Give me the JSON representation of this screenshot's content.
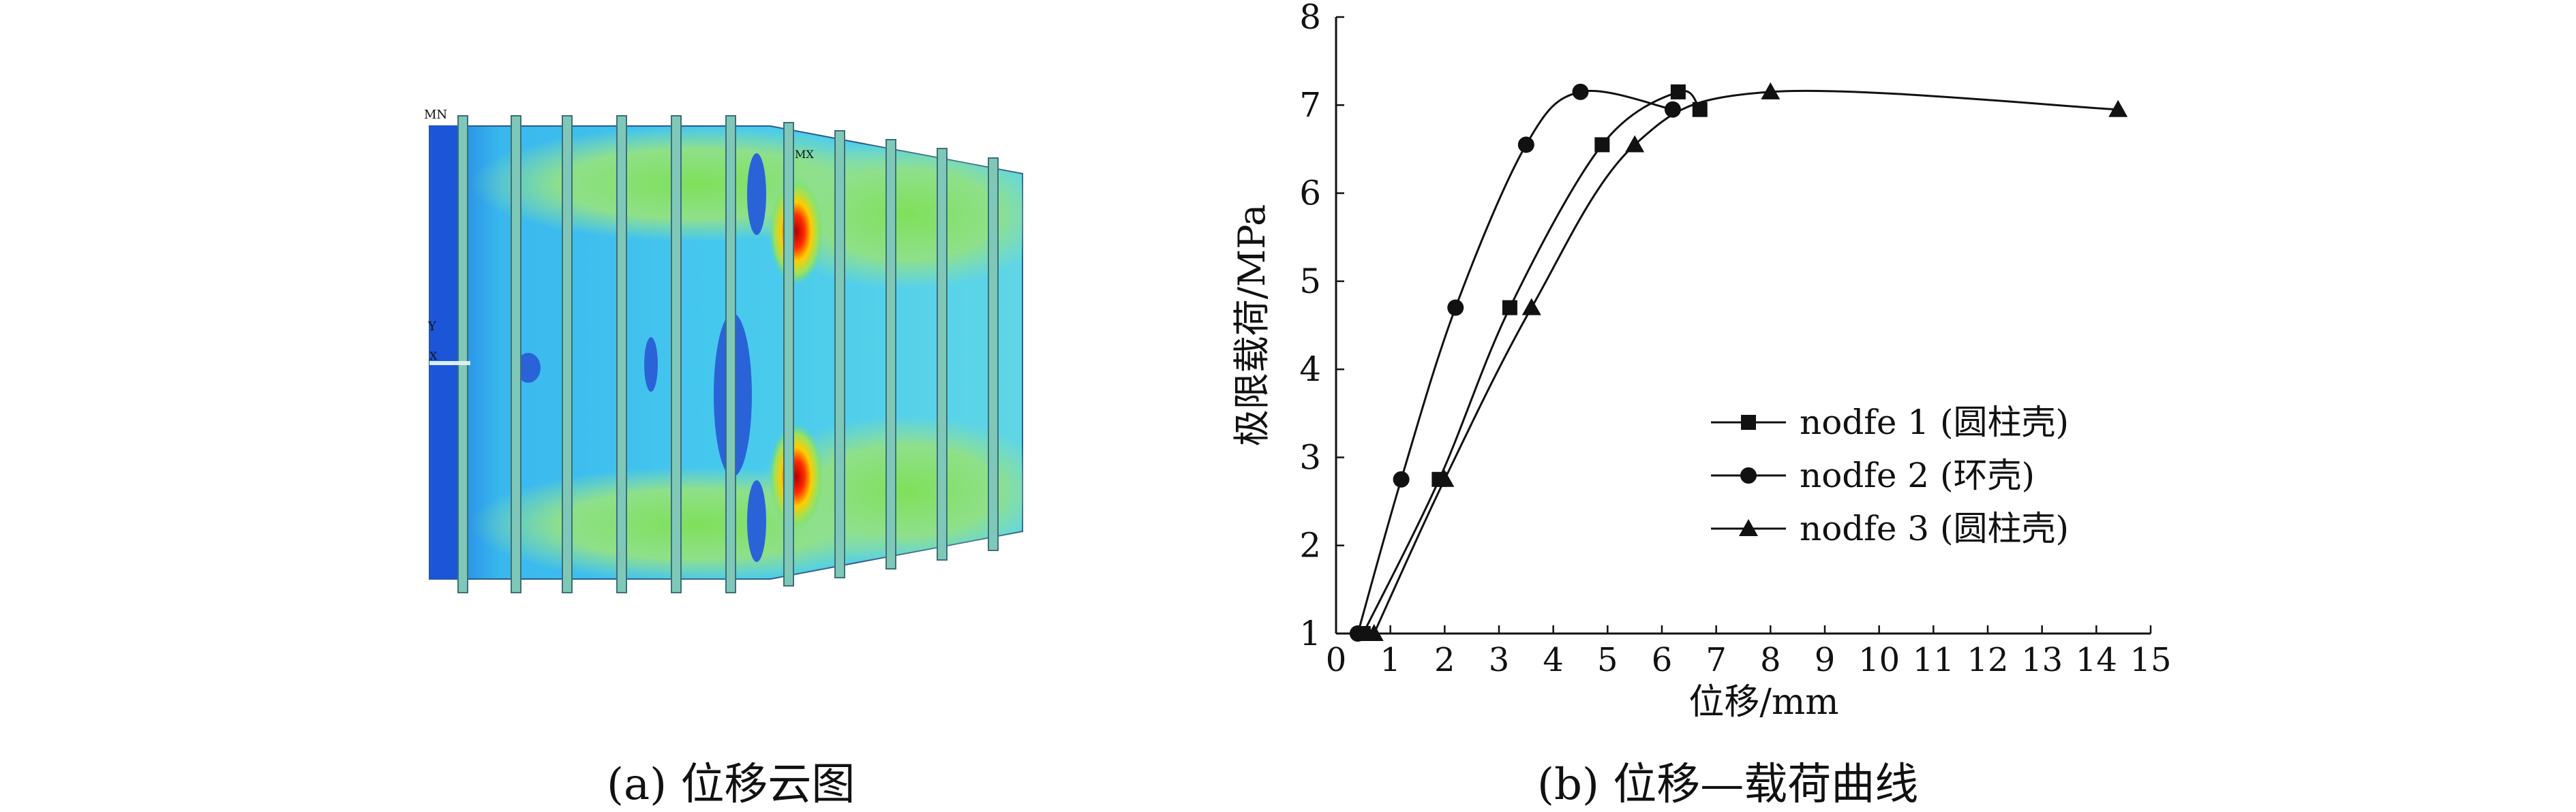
{
  "panel_a": {
    "caption": "(a) 位移云图",
    "labels": {
      "mn": "MN",
      "mx": "MX",
      "y_axis": "Y",
      "x_axis": "X"
    }
  },
  "panel_b": {
    "caption": "(b) 位移—载荷曲线"
  },
  "chart_data": {
    "type": "line",
    "xlabel": "位移/mm",
    "ylabel": "极限载荷/MPa",
    "xlim": [
      0,
      15
    ],
    "ylim": [
      1,
      8
    ],
    "xticks": [
      0,
      1,
      2,
      3,
      4,
      5,
      6,
      7,
      8,
      9,
      10,
      11,
      12,
      13,
      14,
      15
    ],
    "yticks": [
      1,
      2,
      3,
      4,
      5,
      6,
      7,
      8
    ],
    "grid": false,
    "legend": "center-right",
    "series": [
      {
        "name": "nodfe 1 (圆柱壳)",
        "marker": "square",
        "x": [
          0.5,
          1.9,
          3.2,
          4.9,
          6.3,
          6.7
        ],
        "y": [
          1.0,
          2.75,
          4.7,
          6.55,
          7.15,
          6.95
        ]
      },
      {
        "name": "nodfe 2 (环壳)",
        "marker": "circle",
        "x": [
          0.4,
          1.2,
          2.2,
          3.5,
          4.5,
          6.2
        ],
        "y": [
          1.0,
          2.75,
          4.7,
          6.55,
          7.15,
          6.95
        ]
      },
      {
        "name": "nodfe 3 (圆柱壳)",
        "marker": "triangle",
        "x": [
          0.7,
          2.0,
          3.6,
          5.5,
          8.0,
          14.4
        ],
        "y": [
          1.0,
          2.75,
          4.7,
          6.55,
          7.15,
          6.95
        ]
      }
    ]
  }
}
